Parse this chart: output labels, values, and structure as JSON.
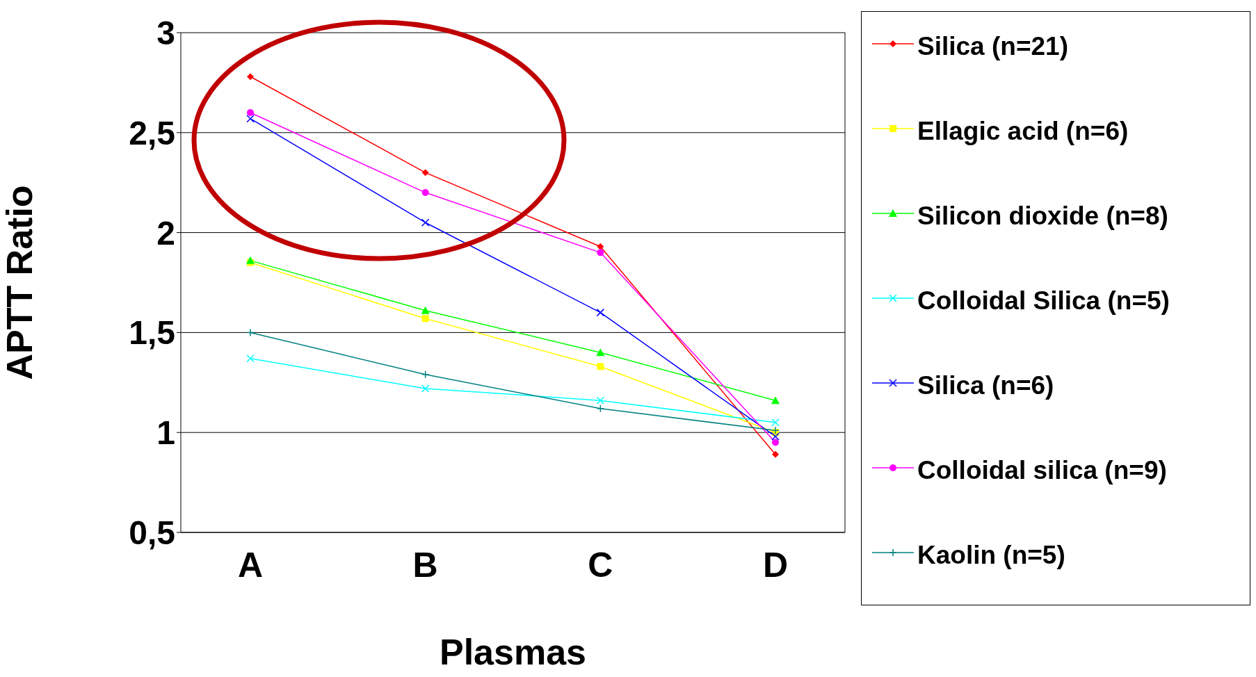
{
  "chart_data": {
    "type": "line",
    "xlabel": "Plasmas",
    "ylabel": "APTT Ratio",
    "categories": [
      "A",
      "B",
      "C",
      "D"
    ],
    "ylim": [
      0.5,
      3
    ],
    "yticks": [
      {
        "value": 0.5,
        "label": "0,5"
      },
      {
        "value": 1,
        "label": "1"
      },
      {
        "value": 1.5,
        "label": "1,5"
      },
      {
        "value": 2,
        "label": "2"
      },
      {
        "value": 2.5,
        "label": "2,5"
      },
      {
        "value": 3,
        "label": "3"
      }
    ],
    "grid": "y",
    "legend": "right",
    "series": [
      {
        "name": "Silica (n=21)",
        "color": "#ff0000",
        "marker": "diamond",
        "values": [
          2.78,
          2.3,
          1.93,
          0.89
        ]
      },
      {
        "name": "Ellagic acid (n=6)",
        "color": "#ffff00",
        "marker": "square",
        "values": [
          1.85,
          1.57,
          1.33,
          1.0
        ]
      },
      {
        "name": "Silicon dioxide (n=8)",
        "color": "#00ff00",
        "marker": "triangle",
        "values": [
          1.86,
          1.61,
          1.4,
          1.16
        ]
      },
      {
        "name": "Colloidal Silica (n=5)",
        "color": "#00ffff",
        "marker": "cross",
        "values": [
          1.37,
          1.22,
          1.16,
          1.05
        ]
      },
      {
        "name": "Silica (n=6)",
        "color": "#0000ff",
        "marker": "cross",
        "values": [
          2.57,
          2.05,
          1.6,
          0.98
        ]
      },
      {
        "name": "Colloidal silica (n=9)",
        "color": "#ff00ff",
        "marker": "circle",
        "values": [
          2.6,
          2.2,
          1.9,
          0.95
        ]
      },
      {
        "name": "Kaolin (n=5)",
        "color": "#008080",
        "marker": "plus",
        "values": [
          1.5,
          1.29,
          1.12,
          1.01
        ]
      }
    ]
  }
}
